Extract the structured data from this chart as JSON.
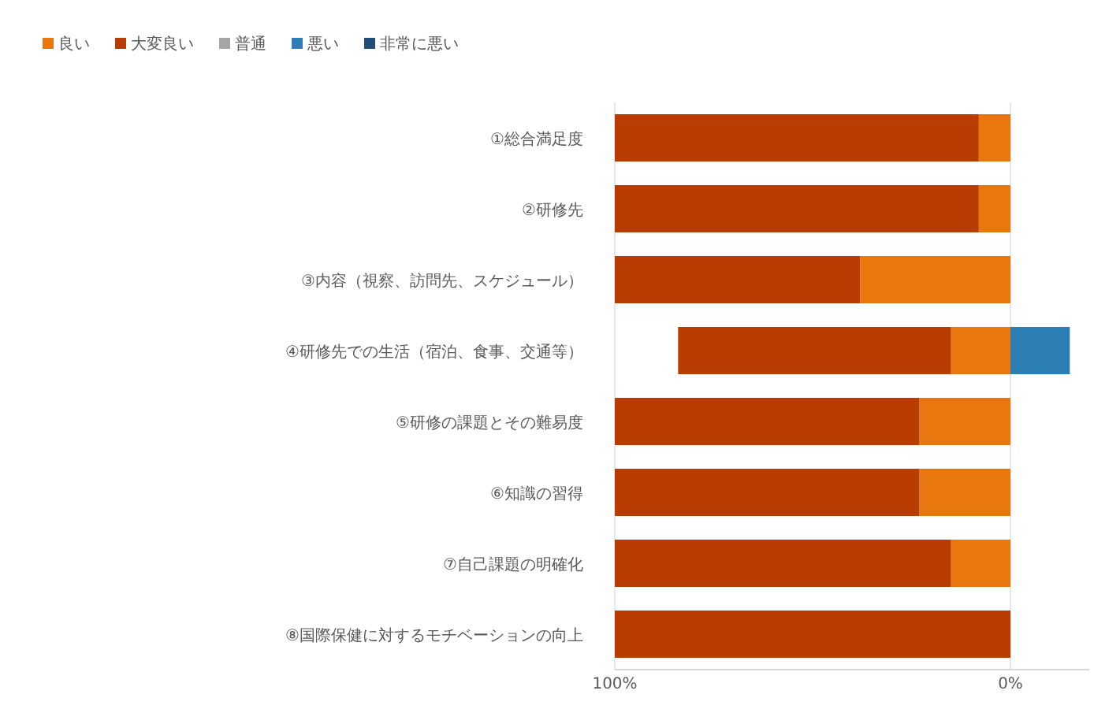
{
  "chart_data": {
    "type": "bar",
    "orientation": "horizontal",
    "stacked": true,
    "categories": [
      "①総合満足度",
      "②研修先",
      "③内容（視察、訪問先、スケジュール）",
      "④研修先での生活（宿泊、食事、交通等）",
      "⑤研修の課題とその難易度",
      "⑥知識の習得",
      "⑦自己課題の明確化",
      "⑧国際保健に対するモチベーションの向上"
    ],
    "series": [
      {
        "name": "良い",
        "color": "#e8770e",
        "values": [
          8,
          8,
          38,
          15,
          23,
          23,
          15,
          null
        ]
      },
      {
        "name": "大変良い",
        "color": "#b93d02",
        "values": [
          92,
          92,
          62,
          69,
          77,
          77,
          85,
          100
        ]
      },
      {
        "name": "普通",
        "color": "#a5a5a5",
        "values": [
          null,
          null,
          null,
          null,
          null,
          null,
          null,
          null
        ]
      },
      {
        "name": "悪い",
        "color": "#2e7fb5",
        "values": [
          null,
          null,
          null,
          -15,
          null,
          null,
          null,
          null
        ]
      },
      {
        "name": "非常に悪い",
        "color": "#1f4e79",
        "values": [
          null,
          null,
          null,
          null,
          null,
          null,
          null,
          null
        ]
      }
    ],
    "xlim": [
      100,
      -20
    ],
    "xticks": [
      {
        "value": 100,
        "label": "100%"
      },
      {
        "value": 0,
        "label": "0%"
      }
    ],
    "grid": "x",
    "legend": "top left"
  }
}
